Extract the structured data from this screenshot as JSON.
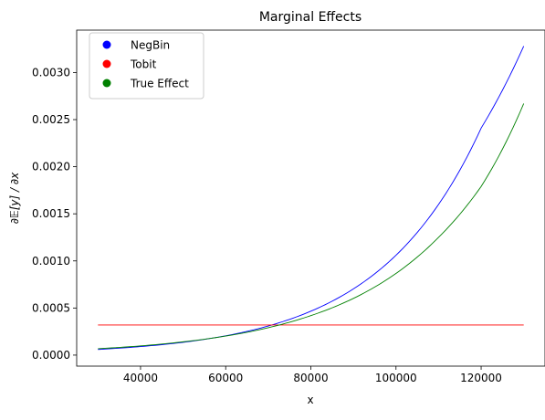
{
  "chart_data": {
    "type": "line",
    "title": "Marginal Effects",
    "xlabel": "x",
    "ylabel": "∂𝔼[y] / ∂x",
    "xlim": [
      25000,
      135000
    ],
    "ylim": [
      -0.000117,
      0.00345
    ],
    "xticks": [
      40000,
      60000,
      80000,
      100000,
      120000
    ],
    "xtick_labels": [
      "40000",
      "60000",
      "80000",
      "100000",
      "120000"
    ],
    "yticks": [
      0.0,
      0.0005,
      0.001,
      0.0015,
      0.002,
      0.0025,
      0.003
    ],
    "ytick_labels": [
      "0.0000",
      "0.0005",
      "0.0010",
      "0.0015",
      "0.0020",
      "0.0025",
      "0.0030"
    ],
    "grid": false,
    "legend_position": "top-left",
    "series": [
      {
        "name": "NegBin",
        "color": "#0000ff",
        "x": [
          30000,
          40000,
          50000,
          60000,
          70000,
          80000,
          90000,
          100000,
          110000,
          120000,
          130000
        ],
        "y": [
          6e-05,
          9.04e-05,
          0.000136,
          0.000205,
          0.000309,
          0.000466,
          0.000703,
          0.00106,
          0.0016,
          0.00241,
          0.00328
        ]
      },
      {
        "name": "Tobit",
        "color": "#ff0000",
        "x": [
          30000,
          130000
        ],
        "y": [
          0.00032,
          0.00032
        ]
      },
      {
        "name": "True Effect",
        "color": "#008000",
        "x": [
          30000,
          40000,
          50000,
          60000,
          70000,
          80000,
          90000,
          100000,
          110000,
          120000,
          130000
        ],
        "y": [
          6.8e-05,
          9.78e-05,
          0.000141,
          0.000202,
          0.000291,
          0.000419,
          0.000602,
          0.000867,
          0.00125,
          0.00179,
          0.00267
        ]
      }
    ]
  }
}
